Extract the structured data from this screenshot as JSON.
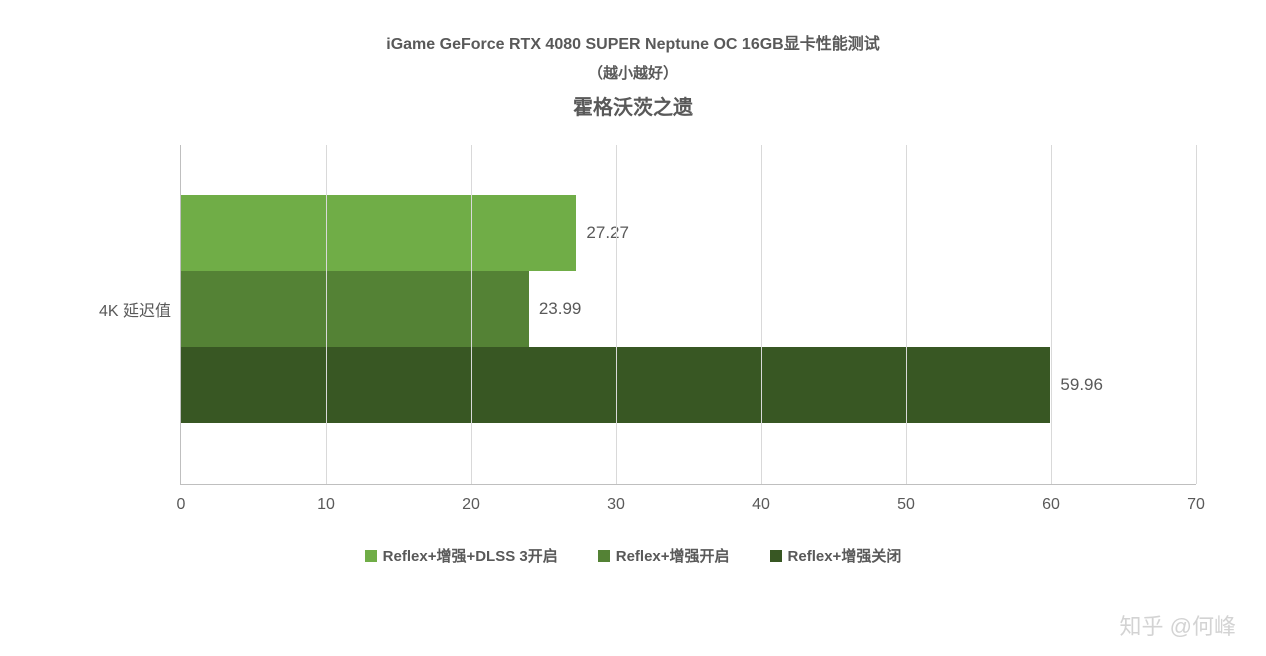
{
  "titles": {
    "line1": "iGame GeForce RTX 4080 SUPER Neptune OC 16GB显卡性能测试",
    "line2": "（越小越好）",
    "line3": "霍格沃茨之遗"
  },
  "chart": {
    "type": "bar",
    "orientation": "horizontal",
    "category_label": "4K 延迟值",
    "xlim": [
      0,
      70
    ],
    "xtick_step": 10,
    "xticks": [
      0,
      10,
      20,
      30,
      40,
      50,
      60,
      70
    ],
    "grid_color": "#d9d9d9",
    "axis_color": "#bfbfbf",
    "background_color": "#ffffff",
    "text_color": "#595959",
    "label_fontsize": 16,
    "value_fontsize": 17,
    "series": [
      {
        "name": "Reflex+增强+DLSS 3开启",
        "value": 27.27,
        "color": "#70ad47"
      },
      {
        "name": "Reflex+增强开启",
        "value": 23.99,
        "color": "#548235"
      },
      {
        "name": "Reflex+增强关闭",
        "value": 59.96,
        "color": "#385723"
      }
    ]
  },
  "legend": {
    "items": [
      {
        "label": "Reflex+增强+DLSS 3开启",
        "color": "#70ad47"
      },
      {
        "label": "Reflex+增强开启",
        "color": "#548235"
      },
      {
        "label": "Reflex+增强关闭",
        "color": "#385723"
      }
    ]
  },
  "watermark": "知乎 @何峰"
}
